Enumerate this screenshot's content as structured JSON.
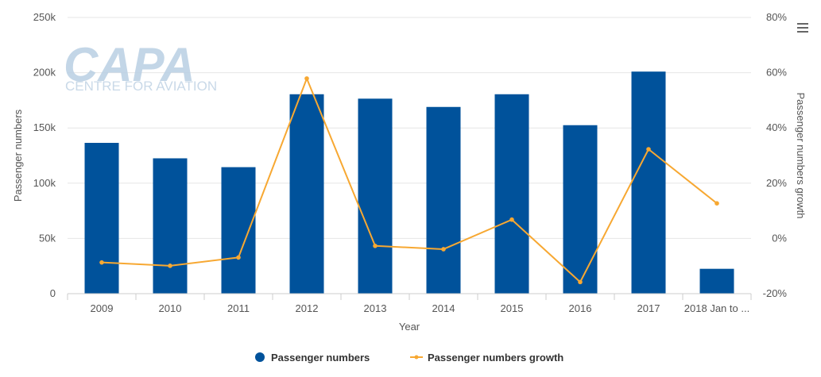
{
  "chart_data": {
    "type": "bar",
    "categories": [
      "2009",
      "2010",
      "2011",
      "2012",
      "2013",
      "2014",
      "2015",
      "2016",
      "2017",
      "2018 Jan to ..."
    ],
    "series": [
      {
        "name": "Passenger numbers",
        "type": "bar",
        "axis": "left",
        "color": "#00529b",
        "values": [
          136500,
          122500,
          114500,
          180500,
          176500,
          169000,
          180500,
          152500,
          201000,
          22500
        ]
      },
      {
        "name": "Passenger numbers growth",
        "type": "line",
        "axis": "right",
        "color": "#f7a832",
        "values": [
          -8.7,
          -9.9,
          -6.9,
          57.9,
          -2.7,
          -3.9,
          6.8,
          -15.8,
          32.3,
          12.7
        ]
      }
    ],
    "xlabel": "Year",
    "ylabel": "Passenger numbers",
    "y2label": "Passenger numbers growth",
    "ylim": [
      0,
      250000
    ],
    "y2lim": [
      -20,
      80
    ],
    "yticks": [
      "0",
      "50k",
      "100k",
      "150k",
      "200k",
      "250k"
    ],
    "y2ticks": [
      "-20%",
      "0%",
      "20%",
      "40%",
      "60%",
      "80%"
    ],
    "grid": true,
    "legend_position": "bottom-center"
  },
  "watermark": {
    "logo_text": "CAPA",
    "subtitle": "CENTRE FOR AVIATION",
    "color": "#b9cfe3"
  },
  "menu": {
    "icon": "hamburger-menu-icon"
  }
}
